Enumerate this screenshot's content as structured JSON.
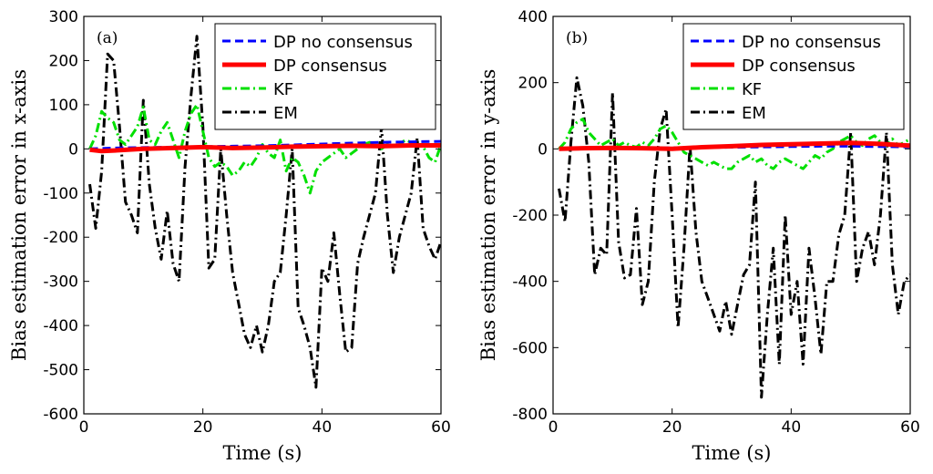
{
  "chart_data": [
    {
      "type": "line",
      "panel_label": "(a)",
      "xlabel": "Time (s)",
      "ylabel": "Bias estimation error in x-axis",
      "xlim": [
        0,
        60
      ],
      "ylim": [
        -600,
        300
      ],
      "xticks": [
        0,
        20,
        40,
        60
      ],
      "yticks": [
        -600,
        -500,
        -400,
        -300,
        -200,
        -100,
        0,
        100,
        200,
        300
      ],
      "grid": false,
      "legend_position": "top-right",
      "series": [
        {
          "name": "DP no consensus",
          "color": "#0000ff",
          "style": "dashed",
          "x": [
            1,
            5,
            10,
            15,
            20,
            25,
            30,
            35,
            40,
            45,
            50,
            55,
            60
          ],
          "y": [
            0,
            2,
            3,
            4,
            5,
            6,
            7,
            9,
            11,
            13,
            15,
            16,
            17
          ]
        },
        {
          "name": "DP consensus",
          "color": "#ff0000",
          "style": "solid",
          "x": [
            1,
            3,
            6,
            10,
            15,
            20,
            25,
            30,
            35,
            40,
            45,
            50,
            55,
            60
          ],
          "y": [
            -2,
            -5,
            -3,
            0,
            2,
            4,
            2,
            3,
            5,
            6,
            7,
            6,
            8,
            8
          ]
        },
        {
          "name": "KF",
          "color": "#00e000",
          "style": "dashdot",
          "x": [
            1,
            2,
            3,
            4,
            5,
            6,
            7,
            8,
            9,
            10,
            11,
            12,
            13,
            14,
            15,
            16,
            17,
            18,
            19,
            20,
            21,
            22,
            23,
            24,
            25,
            26,
            27,
            28,
            29,
            30,
            31,
            32,
            33,
            34,
            35,
            36,
            37,
            38,
            39,
            40,
            41,
            42,
            43,
            44,
            45,
            46,
            47,
            48,
            49,
            50,
            51,
            52,
            53,
            54,
            55,
            56,
            57,
            58,
            59,
            60
          ],
          "y": [
            0,
            30,
            85,
            70,
            60,
            20,
            10,
            30,
            50,
            95,
            20,
            10,
            40,
            60,
            20,
            -20,
            40,
            80,
            100,
            40,
            -20,
            -40,
            -30,
            -40,
            -60,
            -50,
            -30,
            -40,
            -20,
            10,
            -10,
            -20,
            20,
            -50,
            -20,
            -30,
            -60,
            -100,
            -50,
            -30,
            -20,
            -10,
            0,
            -20,
            -10,
            0,
            10,
            15,
            10,
            0,
            10,
            5,
            10,
            20,
            15,
            10,
            5,
            -20,
            -30,
            10
          ]
        },
        {
          "name": "EM",
          "color": "#000000",
          "style": "dashdot",
          "x": [
            1,
            2,
            3,
            4,
            5,
            6,
            7,
            8,
            9,
            10,
            11,
            12,
            13,
            14,
            15,
            16,
            17,
            18,
            19,
            20,
            21,
            22,
            23,
            24,
            25,
            26,
            27,
            28,
            29,
            30,
            31,
            32,
            33,
            34,
            35,
            36,
            37,
            38,
            39,
            40,
            41,
            42,
            43,
            44,
            45,
            46,
            47,
            48,
            49,
            50,
            51,
            52,
            53,
            54,
            55,
            56,
            57,
            58,
            59,
            60
          ],
          "y": [
            -80,
            -180,
            -50,
            215,
            200,
            50,
            -120,
            -150,
            -190,
            110,
            -80,
            -180,
            -250,
            -140,
            -260,
            -300,
            -40,
            120,
            255,
            50,
            -270,
            -250,
            0,
            -150,
            -280,
            -350,
            -420,
            -450,
            -400,
            -460,
            -400,
            -300,
            -280,
            -150,
            0,
            -360,
            -400,
            -450,
            -540,
            -270,
            -300,
            -190,
            -330,
            -460,
            -450,
            -260,
            -200,
            -150,
            -100,
            50,
            -150,
            -280,
            -200,
            -150,
            -100,
            25,
            -180,
            -220,
            -250,
            -210
          ]
        }
      ]
    },
    {
      "type": "line",
      "panel_label": "(b)",
      "xlabel": "Time (s)",
      "ylabel": "Bias estimation error in y-axis",
      "xlim": [
        0,
        60
      ],
      "ylim": [
        -800,
        400
      ],
      "xticks": [
        0,
        20,
        40,
        60
      ],
      "yticks": [
        -800,
        -600,
        -400,
        -200,
        0,
        200,
        400
      ],
      "grid": false,
      "legend_position": "top-right",
      "series": [
        {
          "name": "DP no consensus",
          "color": "#0000ff",
          "style": "dashed",
          "x": [
            1,
            5,
            10,
            15,
            20,
            25,
            30,
            35,
            40,
            45,
            50,
            55,
            60
          ],
          "y": [
            0,
            1,
            2,
            2,
            3,
            4,
            5,
            6,
            7,
            8,
            8,
            7,
            6
          ]
        },
        {
          "name": "DP consensus",
          "color": "#ff0000",
          "style": "solid",
          "x": [
            1,
            5,
            10,
            15,
            20,
            25,
            30,
            35,
            40,
            45,
            50,
            55,
            60
          ],
          "y": [
            0,
            2,
            3,
            2,
            0,
            5,
            8,
            12,
            14,
            16,
            18,
            15,
            10
          ]
        },
        {
          "name": "KF",
          "color": "#00e000",
          "style": "dashdot",
          "x": [
            1,
            2,
            3,
            4,
            5,
            6,
            7,
            8,
            9,
            10,
            11,
            12,
            13,
            14,
            15,
            16,
            17,
            18,
            19,
            20,
            21,
            22,
            23,
            24,
            25,
            26,
            27,
            28,
            29,
            30,
            31,
            32,
            33,
            34,
            35,
            36,
            37,
            38,
            39,
            40,
            41,
            42,
            43,
            44,
            45,
            46,
            47,
            48,
            49,
            50,
            51,
            52,
            53,
            54,
            55,
            56,
            57,
            58,
            59,
            60
          ],
          "y": [
            0,
            20,
            60,
            80,
            90,
            50,
            30,
            10,
            20,
            30,
            10,
            20,
            10,
            5,
            20,
            10,
            30,
            60,
            70,
            50,
            20,
            -10,
            -20,
            -30,
            -40,
            -50,
            -40,
            -50,
            -60,
            -60,
            -40,
            -30,
            -20,
            -40,
            -30,
            -50,
            -60,
            -40,
            -30,
            -40,
            -50,
            -60,
            -40,
            -20,
            -30,
            -10,
            0,
            20,
            30,
            40,
            20,
            10,
            30,
            40,
            20,
            10,
            30,
            10,
            20,
            30
          ]
        },
        {
          "name": "EM",
          "color": "#000000",
          "style": "dashdot",
          "x": [
            1,
            2,
            3,
            4,
            5,
            6,
            7,
            8,
            9,
            10,
            11,
            12,
            13,
            14,
            15,
            16,
            17,
            18,
            19,
            20,
            21,
            22,
            23,
            24,
            25,
            26,
            27,
            28,
            29,
            30,
            31,
            32,
            33,
            34,
            35,
            36,
            37,
            38,
            39,
            40,
            41,
            42,
            43,
            44,
            45,
            46,
            47,
            48,
            49,
            50,
            51,
            52,
            53,
            54,
            55,
            56,
            57,
            58,
            59,
            60
          ],
          "y": [
            -120,
            -220,
            20,
            215,
            130,
            -40,
            -380,
            -300,
            -320,
            170,
            -280,
            -390,
            -380,
            -180,
            -470,
            -400,
            -100,
            60,
            120,
            -200,
            -540,
            -300,
            10,
            -250,
            -400,
            -450,
            -500,
            -550,
            -460,
            -560,
            -470,
            -380,
            -350,
            -100,
            -750,
            -500,
            -300,
            -650,
            -200,
            -500,
            -400,
            -650,
            -300,
            -450,
            -620,
            -400,
            -400,
            -260,
            -200,
            50,
            -400,
            -300,
            -250,
            -350,
            -200,
            50,
            -350,
            -500,
            -400,
            -380
          ]
        }
      ]
    }
  ]
}
